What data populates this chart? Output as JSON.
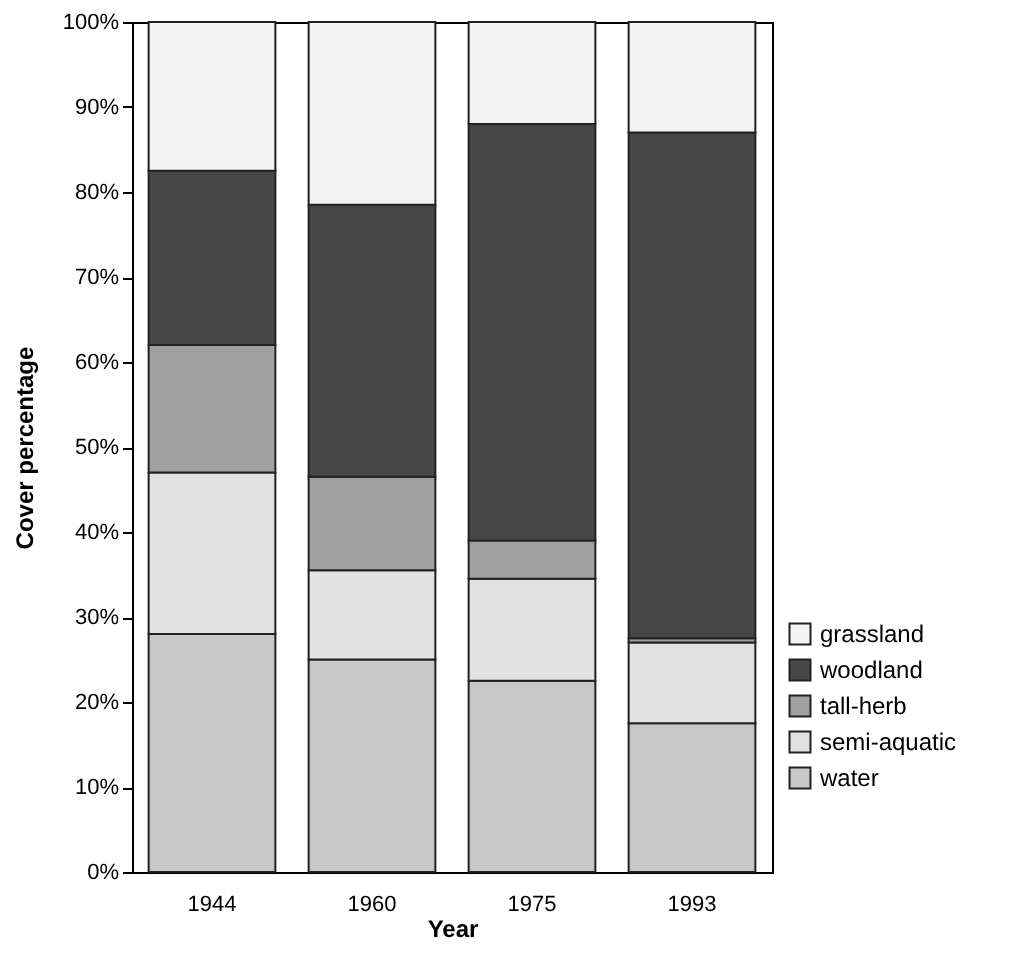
{
  "chart_data": {
    "type": "bar",
    "stacked": true,
    "xlabel": "Year",
    "ylabel": "Cover percentage",
    "categories": [
      "1944",
      "1960",
      "1975",
      "1993"
    ],
    "series": [
      {
        "name": "water",
        "color": "#c8c8c8",
        "values": [
          28,
          25,
          22.5,
          17.5
        ]
      },
      {
        "name": "semi-aquatic",
        "color": "#e2e2e2",
        "values": [
          19,
          10.5,
          12,
          9.5
        ]
      },
      {
        "name": "tall-herb",
        "color": "#a0a0a0",
        "values": [
          15,
          11,
          4.5,
          0.5
        ]
      },
      {
        "name": "woodland",
        "color": "#474747",
        "values": [
          20.5,
          32,
          49,
          59.5
        ]
      },
      {
        "name": "grassland",
        "color": "#f4f4f4",
        "values": [
          17.5,
          21.5,
          12,
          13
        ]
      }
    ],
    "ylim": [
      0,
      100
    ],
    "yticks": [
      {
        "value": 0,
        "label": "0%"
      },
      {
        "value": 10,
        "label": "10%"
      },
      {
        "value": 20,
        "label": "20%"
      },
      {
        "value": 30,
        "label": "30%"
      },
      {
        "value": 40,
        "label": "40%"
      },
      {
        "value": 50,
        "label": "50%"
      },
      {
        "value": 60,
        "label": "60%"
      },
      {
        "value": 70,
        "label": "70%"
      },
      {
        "value": 80,
        "label": "80%"
      },
      {
        "value": 90,
        "label": "90%"
      },
      {
        "value": 100,
        "label": "100%"
      }
    ],
    "grid": false,
    "legend": "bottom right"
  }
}
